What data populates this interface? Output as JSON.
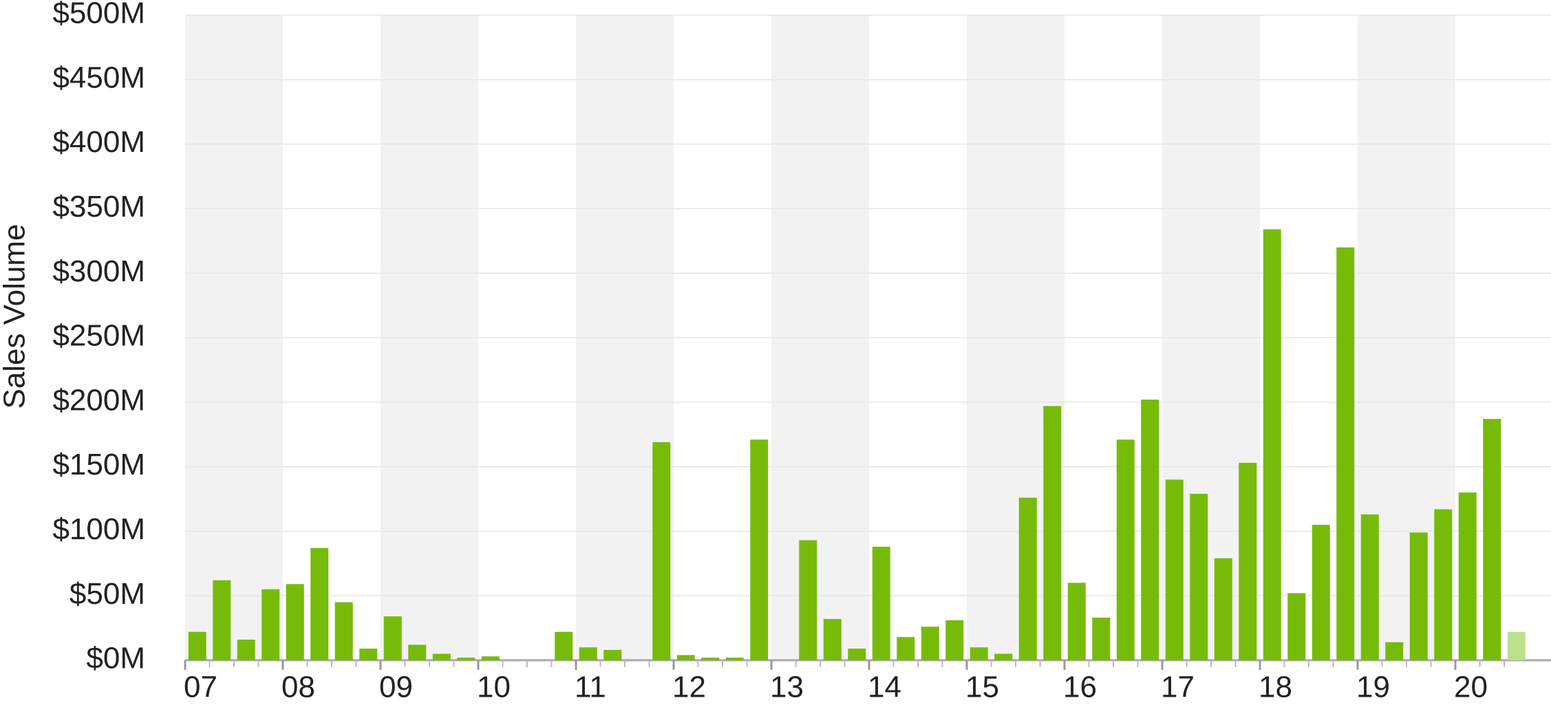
{
  "chart_data": {
    "type": "bar",
    "y_axis_label": "Sales Volume",
    "categories": [
      "07",
      null,
      null,
      null,
      "08",
      null,
      null,
      null,
      "09",
      null,
      null,
      null,
      "10",
      null,
      null,
      null,
      "11",
      null,
      null,
      null,
      "12",
      null,
      null,
      null,
      "13",
      null,
      null,
      null,
      "14",
      null,
      null,
      null,
      "15",
      null,
      null,
      null,
      "16",
      null,
      null,
      null,
      "17",
      null,
      null,
      null,
      "18",
      null,
      null,
      null,
      "19",
      null,
      null,
      null,
      "20",
      null,
      null
    ],
    "values": [
      22,
      62,
      16,
      55,
      59,
      87,
      45,
      9,
      34,
      12,
      5,
      2,
      3,
      0,
      0,
      22,
      10,
      8,
      0,
      169,
      4,
      2,
      2,
      171,
      0,
      93,
      32,
      9,
      88,
      18,
      26,
      31,
      10,
      5,
      126,
      197,
      60,
      33,
      171,
      202,
      140,
      129,
      79,
      153,
      334,
      52,
      105,
      320,
      113,
      14,
      99,
      117,
      130,
      187,
      22
    ],
    "colors": [
      "#77bb0a",
      "#77bb0a",
      "#77bb0a",
      "#77bb0a",
      "#77bb0a",
      "#77bb0a",
      "#77bb0a",
      "#77bb0a",
      "#77bb0a",
      "#77bb0a",
      "#77bb0a",
      "#77bb0a",
      "#77bb0a",
      "#77bb0a",
      "#77bb0a",
      "#77bb0a",
      "#77bb0a",
      "#77bb0a",
      "#77bb0a",
      "#77bb0a",
      "#77bb0a",
      "#77bb0a",
      "#77bb0a",
      "#77bb0a",
      "#77bb0a",
      "#77bb0a",
      "#77bb0a",
      "#77bb0a",
      "#77bb0a",
      "#77bb0a",
      "#77bb0a",
      "#77bb0a",
      "#77bb0a",
      "#77bb0a",
      "#77bb0a",
      "#77bb0a",
      "#77bb0a",
      "#77bb0a",
      "#77bb0a",
      "#77bb0a",
      "#77bb0a",
      "#77bb0a",
      "#77bb0a",
      "#77bb0a",
      "#77bb0a",
      "#77bb0a",
      "#77bb0a",
      "#77bb0a",
      "#77bb0a",
      "#77bb0a",
      "#77bb0a",
      "#77bb0a",
      "#77bb0a",
      "#77bb0a",
      "#bbe08a"
    ],
    "ylim": [
      0,
      500
    ],
    "yticks": [
      {
        "value": 0,
        "label": "$0M"
      },
      {
        "value": 50,
        "label": "$50M"
      },
      {
        "value": 100,
        "label": "$100M"
      },
      {
        "value": 150,
        "label": "$150M"
      },
      {
        "value": 200,
        "label": "$200M"
      },
      {
        "value": 250,
        "label": "$250M"
      },
      {
        "value": 300,
        "label": "$300M"
      },
      {
        "value": 350,
        "label": "$350M"
      },
      {
        "value": 400,
        "label": "$400M"
      },
      {
        "value": 450,
        "label": "$450M"
      },
      {
        "value": 500,
        "label": "$500M"
      }
    ],
    "grid": true
  }
}
